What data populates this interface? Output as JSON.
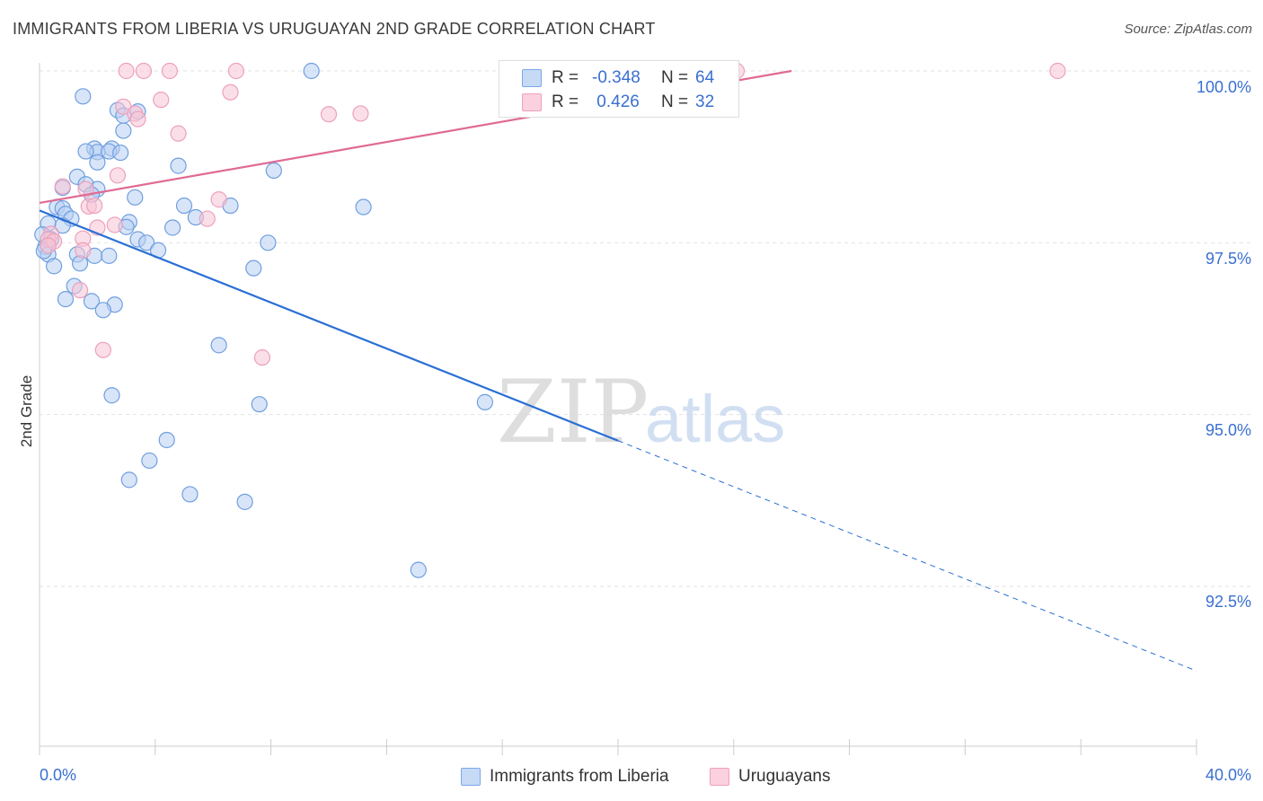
{
  "header": {
    "title": "IMMIGRANTS FROM LIBERIA VS URUGUAYAN 2ND GRADE CORRELATION CHART",
    "source": "Source: ZipAtlas.com"
  },
  "watermark": {
    "zip": "ZIP",
    "atlas": "atlas"
  },
  "legend_top": {
    "rows": [
      {
        "r_label": "R =",
        "r_value": "-0.348",
        "n_label": "N =",
        "n_value": "64",
        "color": "#7aa7e8"
      },
      {
        "r_label": "R =",
        "r_value": " 0.426",
        "n_label": "N =",
        "n_value": "32",
        "color": "#f0a0bc"
      }
    ]
  },
  "legend_bottom": {
    "items": [
      {
        "label": "Immigrants from Liberia",
        "color": "#7aa7e8"
      },
      {
        "label": "Uruguayans",
        "color": "#f0a0bc"
      }
    ]
  },
  "axes": {
    "ylabel": "2nd Grade",
    "x_min_label": "0.0%",
    "x_max_label": "40.0%",
    "y_ticks": [
      "100.0%",
      "97.5%",
      "95.0%",
      "92.5%"
    ]
  },
  "chart_data": {
    "type": "scatter",
    "title": "IMMIGRANTS FROM LIBERIA VS URUGUAYAN 2ND GRADE CORRELATION CHART",
    "xlabel": "",
    "ylabel": "2nd Grade",
    "xlim": [
      0,
      40
    ],
    "ylim": [
      90.2,
      100.2
    ],
    "y_ticks": [
      92.5,
      95.0,
      97.5,
      100.0
    ],
    "grid": true,
    "colors": {
      "liberia_fill": "#b8d0f2",
      "liberia_stroke": "#6f9fe0",
      "liberia_line": "#2a6fd4",
      "uruguay_fill": "#f8c4d6",
      "uruguay_stroke": "#eda0bb",
      "uruguay_line": "#e06a94",
      "tick_text": "#3a6fd0"
    },
    "series": [
      {
        "name": "Immigrants from Liberia",
        "R": -0.348,
        "N": 64,
        "trend": {
          "x0": 0.0,
          "y0": 97.97,
          "x1": 20.0,
          "y1": 94.62,
          "x_dash_end": 40.0,
          "y_dash_end": 91.27
        },
        "points": [
          [
            1.5,
            99.63
          ],
          [
            9.4,
            100.0
          ],
          [
            2.7,
            99.43
          ],
          [
            3.4,
            99.41
          ],
          [
            2.9,
            99.35
          ],
          [
            2.9,
            99.13
          ],
          [
            1.9,
            98.87
          ],
          [
            2.0,
            98.82
          ],
          [
            2.5,
            98.87
          ],
          [
            2.4,
            98.83
          ],
          [
            1.6,
            98.83
          ],
          [
            2.8,
            98.81
          ],
          [
            2.0,
            98.67
          ],
          [
            4.8,
            98.62
          ],
          [
            8.1,
            98.55
          ],
          [
            1.3,
            98.46
          ],
          [
            1.6,
            98.35
          ],
          [
            0.8,
            98.3
          ],
          [
            2.0,
            98.28
          ],
          [
            1.8,
            98.2
          ],
          [
            3.3,
            98.16
          ],
          [
            5.0,
            98.04
          ],
          [
            6.6,
            98.04
          ],
          [
            11.2,
            98.02
          ],
          [
            0.6,
            98.02
          ],
          [
            0.8,
            98.0
          ],
          [
            0.9,
            97.92
          ],
          [
            5.4,
            97.87
          ],
          [
            1.1,
            97.85
          ],
          [
            3.1,
            97.8
          ],
          [
            0.3,
            97.78
          ],
          [
            0.8,
            97.75
          ],
          [
            3.0,
            97.73
          ],
          [
            4.6,
            97.72
          ],
          [
            0.4,
            97.55
          ],
          [
            3.4,
            97.55
          ],
          [
            3.7,
            97.5
          ],
          [
            7.9,
            97.5
          ],
          [
            0.2,
            97.44
          ],
          [
            4.1,
            97.39
          ],
          [
            0.3,
            97.33
          ],
          [
            1.3,
            97.33
          ],
          [
            1.9,
            97.31
          ],
          [
            2.4,
            97.31
          ],
          [
            1.4,
            97.2
          ],
          [
            0.5,
            97.16
          ],
          [
            7.4,
            97.13
          ],
          [
            1.2,
            96.87
          ],
          [
            0.9,
            96.68
          ],
          [
            1.8,
            96.65
          ],
          [
            2.6,
            96.6
          ],
          [
            2.2,
            96.52
          ],
          [
            6.2,
            96.01
          ],
          [
            2.5,
            95.28
          ],
          [
            7.6,
            95.15
          ],
          [
            15.4,
            95.18
          ],
          [
            4.4,
            94.63
          ],
          [
            3.8,
            94.33
          ],
          [
            3.1,
            94.05
          ],
          [
            5.2,
            93.84
          ],
          [
            7.1,
            93.73
          ],
          [
            13.1,
            92.74
          ],
          [
            0.1,
            97.62
          ],
          [
            0.15,
            97.38
          ]
        ]
      },
      {
        "name": "Uruguayans",
        "R": 0.426,
        "N": 32,
        "trend": {
          "x0": 0.0,
          "y0": 98.08,
          "x1": 26.0,
          "y1": 100.0
        },
        "points": [
          [
            3.0,
            100.0
          ],
          [
            3.6,
            100.0
          ],
          [
            4.5,
            100.0
          ],
          [
            6.8,
            100.0
          ],
          [
            24.1,
            100.0
          ],
          [
            35.2,
            100.0
          ],
          [
            6.6,
            99.69
          ],
          [
            2.9,
            99.48
          ],
          [
            4.2,
            99.58
          ],
          [
            3.3,
            99.38
          ],
          [
            3.4,
            99.3
          ],
          [
            10.0,
            99.37
          ],
          [
            11.1,
            99.38
          ],
          [
            4.8,
            99.09
          ],
          [
            2.7,
            98.48
          ],
          [
            1.6,
            98.28
          ],
          [
            0.8,
            98.32
          ],
          [
            1.7,
            98.03
          ],
          [
            6.2,
            98.13
          ],
          [
            1.9,
            98.04
          ],
          [
            5.8,
            97.85
          ],
          [
            2.6,
            97.76
          ],
          [
            2.0,
            97.72
          ],
          [
            0.4,
            97.63
          ],
          [
            1.5,
            97.56
          ],
          [
            0.3,
            97.55
          ],
          [
            0.5,
            97.52
          ],
          [
            0.3,
            97.46
          ],
          [
            1.5,
            97.39
          ],
          [
            1.4,
            96.81
          ],
          [
            2.2,
            95.94
          ],
          [
            7.7,
            95.83
          ]
        ]
      }
    ]
  }
}
